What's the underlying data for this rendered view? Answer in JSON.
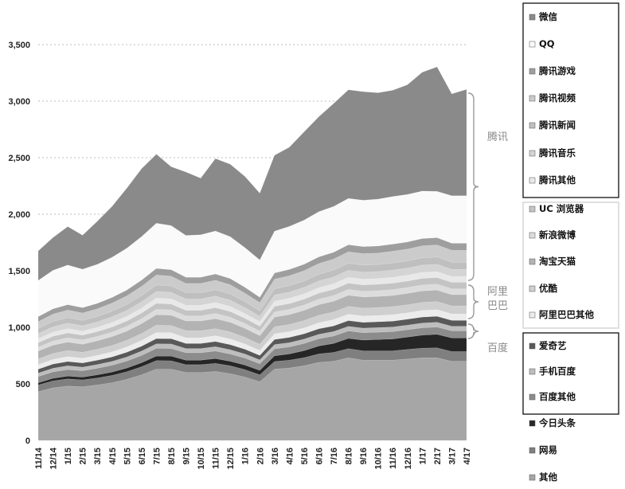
{
  "chart_data": {
    "type": "area",
    "stacked": true,
    "ylim": [
      0,
      3500
    ],
    "yticks": [
      "0",
      "500",
      "1,000",
      "1,500",
      "2,000",
      "2,500",
      "3,000",
      "3,500"
    ],
    "grid": "horizontal dotted",
    "legend_position": "right",
    "categories": [
      "11/14",
      "12/14",
      "1/15",
      "2/15",
      "3/15",
      "4/15",
      "5/15",
      "6/15",
      "7/15",
      "8/15",
      "9/15",
      "10/15",
      "11/15",
      "12/15",
      "1/16",
      "2/16",
      "3/16",
      "4/16",
      "5/16",
      "6/16",
      "7/16",
      "8/16",
      "9/16",
      "10/16",
      "11/16",
      "12/16",
      "1/17",
      "2/17",
      "3/17",
      "4/17"
    ],
    "series": [
      {
        "name": "其他",
        "color": "#a6a6a6",
        "values": [
          430,
          465,
          480,
          475,
          490,
          510,
          540,
          580,
          630,
          630,
          600,
          600,
          610,
          590,
          560,
          520,
          630,
          640,
          660,
          690,
          700,
          730,
          710,
          710,
          710,
          720,
          730,
          730,
          700,
          700
        ]
      },
      {
        "name": "网易",
        "color": "#7f7f7f",
        "values": [
          60,
          62,
          64,
          60,
          62,
          65,
          68,
          72,
          76,
          74,
          70,
          70,
          72,
          70,
          66,
          60,
          68,
          70,
          72,
          75,
          78,
          82,
          82,
          82,
          82,
          84,
          86,
          88,
          86,
          86
        ]
      },
      {
        "name": "今日头条",
        "color": "#262626",
        "values": [
          20,
          22,
          25,
          25,
          28,
          30,
          32,
          35,
          40,
          42,
          40,
          40,
          42,
          40,
          40,
          40,
          50,
          55,
          62,
          70,
          80,
          90,
          95,
          100,
          105,
          110,
          115,
          120,
          120,
          120
        ]
      },
      {
        "name": "百度其他",
        "color": "#8c8c8c",
        "values": [
          55,
          57,
          58,
          56,
          58,
          60,
          62,
          65,
          68,
          67,
          65,
          65,
          66,
          64,
          62,
          58,
          62,
          62,
          63,
          64,
          65,
          66,
          65,
          65,
          65,
          65,
          65,
          65,
          63,
          63
        ]
      },
      {
        "name": "手机百度",
        "color": "#bdbdbd",
        "values": [
          30,
          32,
          33,
          32,
          33,
          34,
          36,
          38,
          40,
          40,
          38,
          38,
          39,
          38,
          36,
          34,
          38,
          38,
          39,
          40,
          40,
          41,
          41,
          41,
          41,
          41,
          42,
          42,
          41,
          41
        ]
      },
      {
        "name": "爱奇艺",
        "color": "#595959",
        "values": [
          35,
          37,
          38,
          37,
          38,
          40,
          42,
          44,
          47,
          47,
          45,
          45,
          46,
          45,
          42,
          40,
          45,
          46,
          47,
          48,
          50,
          51,
          51,
          51,
          52,
          52,
          53,
          53,
          52,
          52
        ]
      },
      {
        "name": "阿里巴巴其他",
        "color": "#ececec",
        "values": [
          40,
          42,
          43,
          42,
          43,
          45,
          47,
          50,
          53,
          52,
          50,
          50,
          51,
          50,
          47,
          44,
          50,
          51,
          52,
          54,
          55,
          56,
          56,
          56,
          57,
          57,
          58,
          58,
          57,
          57
        ]
      },
      {
        "name": "优酷",
        "color": "#cfcfcf",
        "values": [
          50,
          52,
          54,
          52,
          54,
          56,
          58,
          62,
          66,
          65,
          62,
          62,
          63,
          62,
          58,
          55,
          62,
          63,
          65,
          67,
          68,
          70,
          70,
          70,
          71,
          71,
          72,
          72,
          71,
          71
        ]
      },
      {
        "name": "淘宝天猫",
        "color": "#b3b3b3",
        "values": [
          70,
          73,
          75,
          72,
          75,
          78,
          82,
          87,
          92,
          90,
          86,
          86,
          88,
          86,
          80,
          75,
          86,
          88,
          90,
          93,
          95,
          98,
          98,
          98,
          99,
          100,
          101,
          101,
          99,
          99
        ]
      },
      {
        "name": "新浪微博",
        "color": "#dcdcdc",
        "values": [
          35,
          37,
          38,
          37,
          38,
          40,
          42,
          44,
          47,
          47,
          45,
          45,
          46,
          45,
          42,
          40,
          45,
          46,
          47,
          48,
          50,
          51,
          51,
          51,
          52,
          52,
          53,
          53,
          52,
          52
        ]
      },
      {
        "name": "UC 浏览器",
        "color": "#c4c4c4",
        "values": [
          40,
          42,
          43,
          42,
          43,
          45,
          47,
          50,
          53,
          52,
          50,
          50,
          51,
          50,
          47,
          44,
          50,
          51,
          52,
          54,
          55,
          56,
          56,
          56,
          57,
          57,
          58,
          58,
          57,
          57
        ]
      },
      {
        "name": "腾讯其他",
        "color": "#e8e8e8",
        "values": [
          35,
          37,
          38,
          37,
          38,
          40,
          42,
          44,
          47,
          47,
          45,
          45,
          46,
          45,
          42,
          40,
          45,
          46,
          47,
          48,
          50,
          51,
          51,
          51,
          52,
          52,
          53,
          53,
          52,
          52
        ]
      },
      {
        "name": "腾讯音乐",
        "color": "#d4d4d4",
        "values": [
          45,
          47,
          48,
          47,
          48,
          50,
          52,
          55,
          58,
          57,
          55,
          55,
          56,
          55,
          52,
          48,
          55,
          56,
          57,
          59,
          60,
          62,
          62,
          62,
          63,
          63,
          64,
          64,
          63,
          63
        ]
      },
      {
        "name": "腾讯新闻",
        "color": "#bfbfbf",
        "values": [
          45,
          47,
          48,
          47,
          48,
          50,
          52,
          55,
          58,
          57,
          55,
          55,
          56,
          55,
          52,
          48,
          55,
          56,
          57,
          59,
          60,
          62,
          62,
          62,
          63,
          63,
          64,
          64,
          63,
          63
        ]
      },
      {
        "name": "腾讯视频",
        "color": "#cbcbcb",
        "values": [
          60,
          65,
          68,
          66,
          68,
          72,
          76,
          82,
          88,
          86,
          82,
          82,
          84,
          82,
          76,
          72,
          85,
          88,
          91,
          95,
          98,
          102,
          102,
          102,
          104,
          105,
          107,
          108,
          105,
          105
        ]
      },
      {
        "name": "腾讯游戏",
        "color": "#9e9e9e",
        "values": [
          45,
          47,
          48,
          47,
          48,
          50,
          52,
          55,
          58,
          57,
          55,
          55,
          56,
          55,
          52,
          48,
          55,
          56,
          57,
          59,
          60,
          62,
          62,
          62,
          63,
          63,
          64,
          64,
          63,
          63
        ]
      },
      {
        "name": "QQ",
        "color": "#fafafa",
        "values": [
          320,
          340,
          350,
          340,
          345,
          355,
          370,
          385,
          400,
          390,
          370,
          375,
          380,
          370,
          350,
          330,
          370,
          380,
          390,
          400,
          405,
          410,
          410,
          415,
          420,
          420,
          420,
          410,
          420,
          420
        ]
      },
      {
        "name": "微信",
        "color": "#8a8a8a",
        "values": [
          260,
          290,
          340,
          300,
          380,
          450,
          530,
          600,
          610,
          520,
          560,
          500,
          640,
          640,
          630,
          590,
          670,
          700,
          780,
          840,
          910,
          960,
          960,
          940,
          940,
          970,
          1050,
          1100,
          900,
          940
        ]
      }
    ],
    "groups": [
      {
        "label": "腾讯"
      },
      {
        "label": "阿里\n巴巴"
      },
      {
        "label": "百度"
      }
    ]
  },
  "legend": {
    "items": [
      "微信",
      "QQ",
      "腾讯游戏",
      "腾讯视频",
      "腾讯新闻",
      "腾讯音乐",
      "腾讯其他",
      "UC 浏览器",
      "新浪微博",
      "淘宝天猫",
      "优酷",
      "阿里巴巴其他",
      "爱奇艺",
      "手机百度",
      "百度其他",
      "今日头条",
      "网易",
      "其他"
    ]
  }
}
